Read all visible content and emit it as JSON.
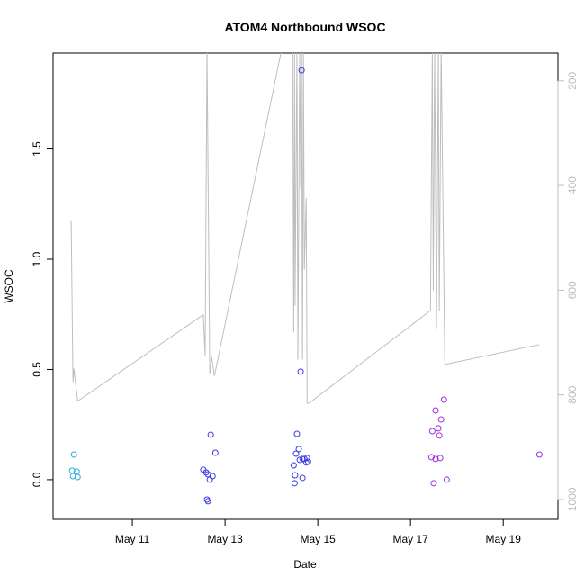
{
  "chart_data": {
    "type": "scatter",
    "title": "ATOM4 Northbound WSOC",
    "xlabel": "Date",
    "ylabel": "WSOC",
    "xlim": [
      9.29,
      20.18
    ],
    "xticks": [
      {
        "value": 11,
        "label": "May 11"
      },
      {
        "value": 13,
        "label": "May 13"
      },
      {
        "value": 15,
        "label": "May 15"
      },
      {
        "value": 17,
        "label": "May 17"
      },
      {
        "value": 19,
        "label": "May 19"
      }
    ],
    "ylim": [
      -0.18,
      1.935
    ],
    "yticks": [
      {
        "value": 0,
        "label": "0.0"
      },
      0.5,
      {
        "value": 1,
        "label": "1.0"
      },
      1.5
    ],
    "y2lim": [
      1038,
      147
    ],
    "y2ticks": [
      200,
      400,
      600,
      800,
      1000
    ],
    "y2color": "#bebebe",
    "series": [
      {
        "color": "#2aa9e0",
        "x": [
          9.74,
          9.7,
          9.8,
          9.72,
          9.82
        ],
        "values": [
          0.114,
          0.041,
          0.037,
          0.016,
          0.012
        ]
      },
      {
        "color": "#3a3ae6",
        "x": [
          12.69,
          12.53,
          12.59,
          12.63,
          12.73,
          12.67,
          12.79,
          12.61,
          12.63,
          14.65,
          14.63,
          14.55,
          14.59,
          14.53,
          14.61,
          14.48,
          14.71,
          14.75,
          14.77,
          14.79,
          14.67,
          14.51,
          14.67,
          14.5
        ],
        "values": [
          0.204,
          0.045,
          0.033,
          0.024,
          0.016,
          0.0,
          0.122,
          -0.09,
          -0.098,
          1.857,
          0.49,
          0.208,
          0.139,
          0.118,
          0.09,
          0.065,
          0.094,
          0.078,
          0.098,
          0.082,
          0.094,
          0.02,
          0.008,
          -0.016
        ]
      },
      {
        "color": "#9a2ee0",
        "x": [
          17.72,
          17.54,
          17.66,
          17.47,
          17.6,
          17.62,
          17.45,
          17.54,
          17.64,
          17.5,
          17.78,
          19.78
        ],
        "values": [
          0.363,
          0.314,
          0.273,
          0.22,
          0.233,
          0.2,
          0.102,
          0.094,
          0.098,
          -0.016,
          0.0,
          0.114
        ]
      },
      {
        "type": "line",
        "axis": "y2",
        "color": "#bebebe",
        "x": [
          9.68,
          9.72,
          9.74,
          9.82,
          12.53,
          12.57,
          12.61,
          12.67,
          12.71,
          12.77,
          14.22,
          14.46,
          14.48,
          14.5,
          14.51,
          14.55,
          14.57,
          14.61,
          14.63,
          14.65,
          14.67,
          14.69,
          14.71,
          14.75,
          14.77,
          14.81,
          17.43,
          17.47,
          17.49,
          17.52,
          17.56,
          17.6,
          17.62,
          17.66,
          17.74,
          19.78
        ],
        "values": [
          468,
          776,
          750,
          812,
          647,
          725,
          140,
          759,
          728,
          764,
          140,
          140,
          681,
          140,
          630,
          140,
          733,
          140,
          406,
          140,
          733,
          140,
          561,
          424,
          816,
          816,
          639,
          140,
          600,
          140,
          673,
          140,
          640,
          140,
          742,
          704
        ]
      }
    ]
  }
}
